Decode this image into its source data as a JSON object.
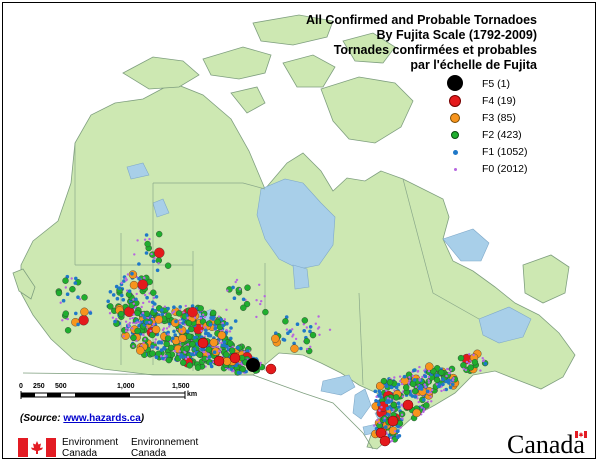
{
  "title": {
    "line1": "All Confirmed and Probable Tornadoes",
    "line2": "By Fujita Scale (1792-2009)",
    "line3": "Tornades confirmées et probables",
    "line4": "par l'échelle de Fujita"
  },
  "legend": [
    {
      "label": "F5 (1)",
      "color": "#000000"
    },
    {
      "label": "F4 (19)",
      "color": "#e41a1c"
    },
    {
      "label": "F3 (85)",
      "color": "#f7941d"
    },
    {
      "label": "F2 (423)",
      "color": "#1fae2e"
    },
    {
      "label": "F1 (1052)",
      "color": "#1f78c8"
    },
    {
      "label": "F0 (2012)",
      "color": "#b666e0"
    }
  ],
  "scale": {
    "ticks": [
      "0",
      "250",
      "500",
      "1,000",
      "1,500"
    ],
    "unit": "km"
  },
  "source": {
    "prefix": "Source",
    "link": "www.hazards.ca"
  },
  "dept": {
    "en_line1": "Environment",
    "en_line2": "Canada",
    "fr_line1": "Environnement",
    "fr_line2": "Canada"
  },
  "wordmark": "Canada",
  "colors": {
    "land": "#cde8b2",
    "water": "#a8cfe9",
    "outside": "#ffffff",
    "border": "#6c8c6c"
  }
}
